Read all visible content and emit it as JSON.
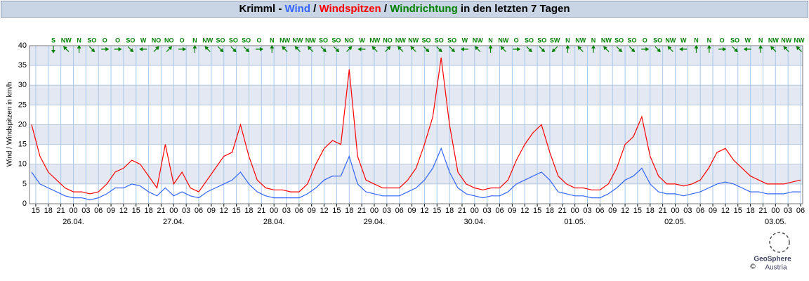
{
  "chart_data": {
    "type": "line",
    "title_parts": [
      "Krimml - ",
      " / ",
      " / ",
      " in den letzten 7 Tagen"
    ],
    "direction_name": "Windrichtung",
    "direction_color": "#008000",
    "ylabel": "Wind / Windspitzen in km/h",
    "ylim": [
      0,
      40
    ],
    "yticks": [
      0,
      5,
      10,
      15,
      20,
      25,
      30,
      35,
      40
    ],
    "bands": true,
    "grid": true,
    "xlim": [
      -10.5,
      174.5
    ],
    "xticks": [
      {
        "value": -9,
        "label": "15"
      },
      {
        "value": -6,
        "label": "18"
      },
      {
        "value": -3,
        "label": "21"
      },
      {
        "value": 0,
        "label": "00"
      },
      {
        "value": 3,
        "label": "03"
      },
      {
        "value": 6,
        "label": "06"
      },
      {
        "value": 9,
        "label": "09"
      },
      {
        "value": 12,
        "label": "12"
      },
      {
        "value": 15,
        "label": "15"
      },
      {
        "value": 18,
        "label": "18"
      },
      {
        "value": 21,
        "label": "21"
      },
      {
        "value": 24,
        "label": "00"
      },
      {
        "value": 27,
        "label": "03"
      },
      {
        "value": 30,
        "label": "06"
      },
      {
        "value": 33,
        "label": "09"
      },
      {
        "value": 36,
        "label": "12"
      },
      {
        "value": 39,
        "label": "15"
      },
      {
        "value": 42,
        "label": "18"
      },
      {
        "value": 45,
        "label": "21"
      },
      {
        "value": 48,
        "label": "00"
      },
      {
        "value": 51,
        "label": "03"
      },
      {
        "value": 54,
        "label": "06"
      },
      {
        "value": 57,
        "label": "09"
      },
      {
        "value": 60,
        "label": "12"
      },
      {
        "value": 63,
        "label": "15"
      },
      {
        "value": 66,
        "label": "18"
      },
      {
        "value": 69,
        "label": "21"
      },
      {
        "value": 72,
        "label": "00"
      },
      {
        "value": 75,
        "label": "03"
      },
      {
        "value": 78,
        "label": "06"
      },
      {
        "value": 81,
        "label": "09"
      },
      {
        "value": 84,
        "label": "12"
      },
      {
        "value": 87,
        "label": "15"
      },
      {
        "value": 90,
        "label": "18"
      },
      {
        "value": 93,
        "label": "21"
      },
      {
        "value": 96,
        "label": "00"
      },
      {
        "value": 99,
        "label": "03"
      },
      {
        "value": 102,
        "label": "06"
      },
      {
        "value": 105,
        "label": "09"
      },
      {
        "value": 108,
        "label": "12"
      },
      {
        "value": 111,
        "label": "15"
      },
      {
        "value": 114,
        "label": "18"
      },
      {
        "value": 117,
        "label": "21"
      },
      {
        "value": 120,
        "label": "00"
      },
      {
        "value": 123,
        "label": "03"
      },
      {
        "value": 126,
        "label": "06"
      },
      {
        "value": 129,
        "label": "09"
      },
      {
        "value": 132,
        "label": "12"
      },
      {
        "value": 135,
        "label": "15"
      },
      {
        "value": 138,
        "label": "18"
      },
      {
        "value": 141,
        "label": "21"
      },
      {
        "value": 144,
        "label": "00"
      },
      {
        "value": 147,
        "label": "03"
      },
      {
        "value": 150,
        "label": "06"
      },
      {
        "value": 153,
        "label": "09"
      },
      {
        "value": 156,
        "label": "12"
      },
      {
        "value": 159,
        "label": "15"
      },
      {
        "value": 162,
        "label": "18"
      },
      {
        "value": 165,
        "label": "21"
      },
      {
        "value": 168,
        "label": "00"
      },
      {
        "value": 171,
        "label": "03"
      },
      {
        "value": 174,
        "label": "06"
      }
    ],
    "day_labels": [
      {
        "value": 0,
        "label": "26.04."
      },
      {
        "value": 24,
        "label": "27.04."
      },
      {
        "value": 48,
        "label": "28.04."
      },
      {
        "value": 72,
        "label": "29.04."
      },
      {
        "value": 96,
        "label": "30.04."
      },
      {
        "value": 120,
        "label": "01.05."
      },
      {
        "value": 144,
        "label": "02.05."
      },
      {
        "value": 168,
        "label": "03.05."
      }
    ],
    "x": [
      -10,
      -8,
      -6,
      -4,
      -2,
      0,
      2,
      4,
      6,
      8,
      10,
      12,
      14,
      16,
      18,
      20,
      22,
      24,
      26,
      28,
      30,
      32,
      34,
      36,
      38,
      40,
      42,
      44,
      46,
      48,
      50,
      52,
      54,
      56,
      58,
      60,
      62,
      64,
      66,
      68,
      70,
      72,
      74,
      76,
      78,
      80,
      82,
      84,
      86,
      88,
      90,
      92,
      94,
      96,
      98,
      100,
      102,
      104,
      106,
      108,
      110,
      112,
      114,
      116,
      118,
      120,
      122,
      124,
      126,
      128,
      130,
      132,
      134,
      136,
      138,
      140,
      142,
      144,
      146,
      148,
      150,
      152,
      154,
      156,
      158,
      160,
      162,
      164,
      166,
      168,
      170,
      172,
      174
    ],
    "series": [
      {
        "name": "Wind",
        "color": "#3366ff",
        "values": [
          8,
          5,
          4,
          3,
          2,
          1.5,
          1.5,
          1,
          1.5,
          2.5,
          4,
          4,
          5,
          4.5,
          3,
          2,
          4,
          2,
          3,
          2,
          1.5,
          3,
          4,
          5,
          6,
          8,
          5,
          3,
          2,
          1.5,
          1.5,
          1.5,
          1.5,
          2.5,
          4,
          6,
          7,
          7,
          12,
          5,
          3,
          2.5,
          2,
          2,
          2,
          3,
          4,
          6,
          9,
          14,
          8,
          4,
          2.5,
          2,
          1.5,
          2,
          2,
          3,
          5,
          6,
          7,
          8,
          6,
          3,
          2.5,
          2,
          2,
          1.5,
          1.5,
          2.5,
          4,
          6,
          7,
          9,
          5,
          3,
          2.5,
          2.5,
          2,
          2.5,
          3,
          4,
          5,
          5.5,
          5,
          4,
          3,
          3,
          2.5,
          2.5,
          2.5,
          3,
          3
        ]
      },
      {
        "name": "Windspitzen",
        "color": "#ff0000",
        "values": [
          20,
          12,
          8,
          6,
          4,
          3,
          3,
          2.5,
          3,
          5,
          8,
          9,
          11,
          10,
          7,
          4,
          15,
          5,
          8,
          4,
          3,
          6,
          9,
          12,
          13,
          20,
          12,
          6,
          4,
          3.5,
          3.5,
          3,
          3,
          5,
          10,
          14,
          16,
          15,
          34,
          12,
          6,
          5,
          4,
          4,
          4,
          6,
          9,
          15,
          22,
          37,
          20,
          8,
          5,
          4,
          3.5,
          4,
          4,
          6,
          11,
          15,
          18,
          20,
          13,
          7,
          5,
          4,
          4,
          3.5,
          3.5,
          5,
          9,
          15,
          17,
          22,
          12,
          7,
          5,
          5,
          4.5,
          5,
          6,
          9,
          13,
          14,
          11,
          9,
          7,
          6,
          5,
          5,
          5,
          5.5,
          6
        ]
      }
    ],
    "wind_direction": [
      "S",
      "NW",
      "N",
      "SO",
      "O",
      "O",
      "SO",
      "W",
      "NO",
      "NO",
      "O",
      "N",
      "NW",
      "SO",
      "SO",
      "SO",
      "O",
      "N",
      "NW",
      "NW",
      "NW",
      "SO",
      "SO",
      "NO",
      "W",
      "NW",
      "NO",
      "NW",
      "NW",
      "SO",
      "SO",
      "SO",
      "W",
      "NW",
      "N",
      "NW",
      "O",
      "SO",
      "SO",
      "SW",
      "N",
      "NW",
      "N",
      "NW",
      "SO",
      "SO",
      "O",
      "SO",
      "NW",
      "W",
      "N",
      "N",
      "O",
      "SO",
      "W",
      "N",
      "NW",
      "NW",
      "NW"
    ],
    "logo": [
      "GeoSphere",
      "Austria"
    ],
    "copyright": "©"
  }
}
